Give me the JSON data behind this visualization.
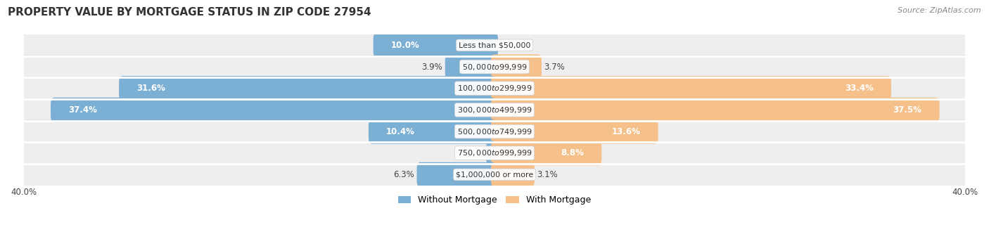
{
  "title": "PROPERTY VALUE BY MORTGAGE STATUS IN ZIP CODE 27954",
  "source": "Source: ZipAtlas.com",
  "categories": [
    "Less than $50,000",
    "$50,000 to $99,999",
    "$100,000 to $299,999",
    "$300,000 to $499,999",
    "$500,000 to $749,999",
    "$750,000 to $999,999",
    "$1,000,000 or more"
  ],
  "without_mortgage": [
    10.0,
    3.9,
    31.6,
    37.4,
    10.4,
    0.4,
    6.3
  ],
  "with_mortgage": [
    0.0,
    3.7,
    33.4,
    37.5,
    13.6,
    8.8,
    3.1
  ],
  "without_mortgage_color": "#7bafd4",
  "with_mortgage_color": "#f5c08a",
  "row_bg_even": "#efefef",
  "row_bg_odd": "#e4e4e4",
  "max_val": 40.0,
  "bar_height": 0.55,
  "title_fontsize": 11,
  "source_fontsize": 8,
  "label_fontsize": 8.5,
  "category_fontsize": 8,
  "legend_fontsize": 9,
  "label_white_threshold": 8.0
}
